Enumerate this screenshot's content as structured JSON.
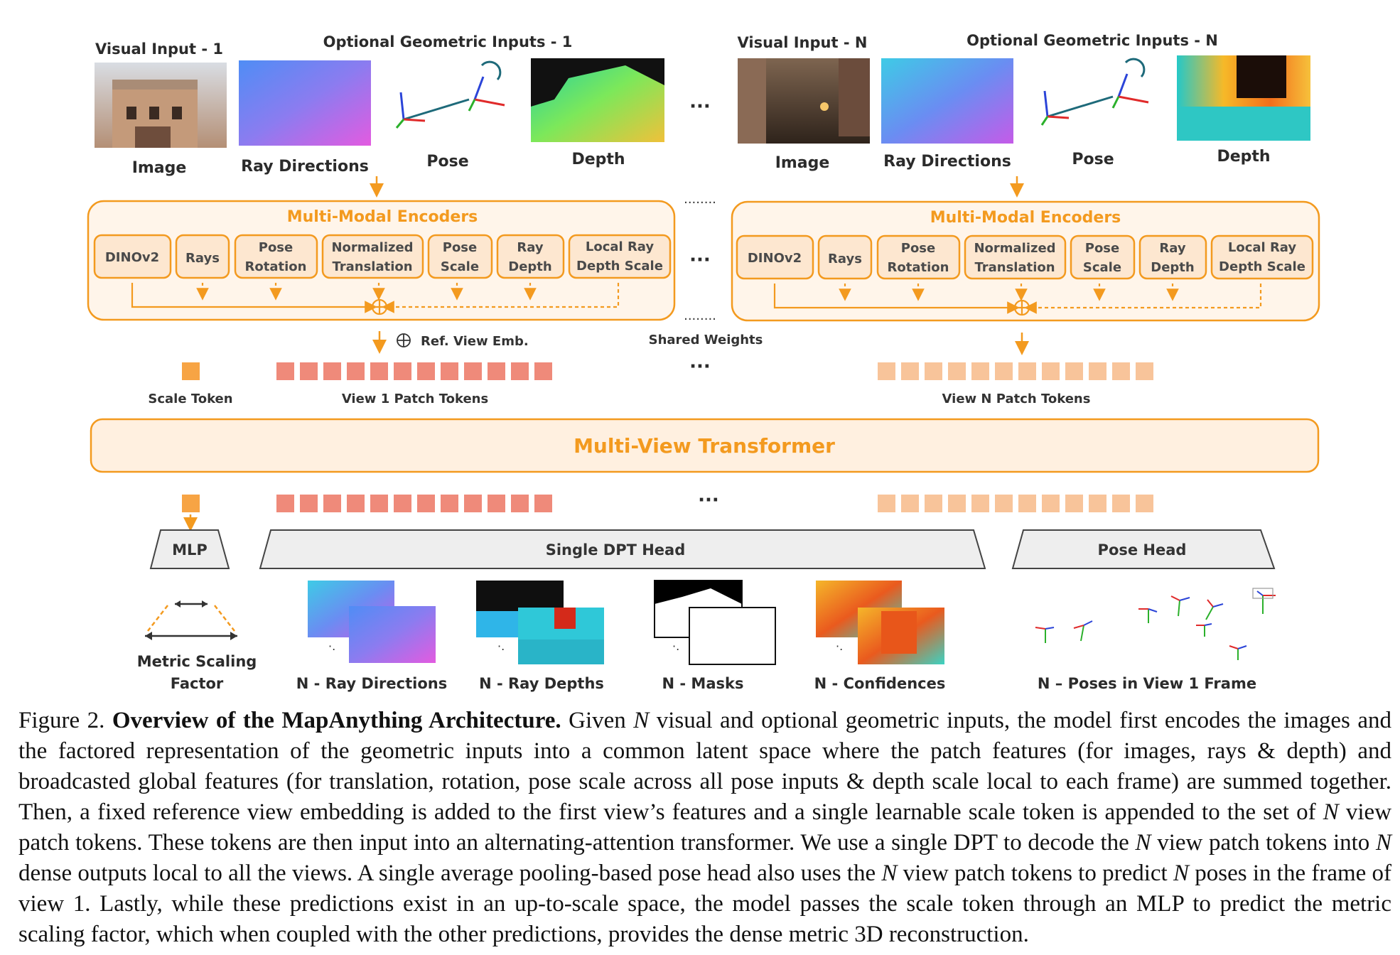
{
  "colors": {
    "orange": "#f39a1f",
    "encoder_fill": "#fde7d0",
    "encoder_border": "#f39a1f",
    "box_fill": "#fff5ea",
    "token_view1": "#ef8a7a",
    "token_viewN": "#f8c49a",
    "scale_token": "#f7a444",
    "head_fill": "#eeeeee"
  },
  "inputs": {
    "view1": {
      "visual_title": "Visual Input - 1",
      "geo_title": "Optional Geometric Inputs - 1",
      "image": "Image",
      "ray": "Ray Directions",
      "pose": "Pose",
      "depth": "Depth"
    },
    "viewN": {
      "visual_title": "Visual Input - N",
      "geo_title": "Optional Geometric Inputs - N",
      "image": "Image",
      "ray": "Ray Directions",
      "pose": "Pose",
      "depth": "Depth"
    },
    "ellipsis": "···"
  },
  "encoders": {
    "title": "Multi-Modal Encoders",
    "blocks": [
      {
        "line1": "DINOv2",
        "line2": ""
      },
      {
        "line1": "Rays",
        "line2": ""
      },
      {
        "line1": "Pose",
        "line2": "Rotation"
      },
      {
        "line1": "Normalized",
        "line2": "Translation"
      },
      {
        "line1": "Pose",
        "line2": "Scale"
      },
      {
        "line1": "Ray",
        "line2": "Depth"
      },
      {
        "line1": "Local Ray",
        "line2": "Depth Scale"
      }
    ],
    "shared_weights": "Shared Weights",
    "ref_view_emb": "Ref. View Emb.",
    "dots_line": "........"
  },
  "tokens": {
    "scale_token": "Scale Token",
    "view1": "View 1 Patch Tokens",
    "viewN": "View N Patch Tokens"
  },
  "transformer": "Multi-View Transformer",
  "heads": {
    "mlp": "MLP",
    "dpt": "Single DPT Head",
    "pose": "Pose Head"
  },
  "outputs": {
    "metric_line1": "Metric Scaling",
    "metric_line2": "Factor",
    "ray_dirs": "N - Ray Directions",
    "ray_depths": "N - Ray Depths",
    "masks": "N - Masks",
    "confidences": "N - Confidences",
    "poses": "N – Poses in View 1 Frame"
  },
  "caption": {
    "label": "Figure 2.",
    "bold": "Overview of the MapAnything Architecture.",
    "p1": "Given",
    "N": "N",
    "p2": "visual and optional geometric inputs, the model first encodes the images and the factored representation of the geometric inputs into a common latent space where the patch features (for images, rays & depth) and broadcasted global features (for translation, rotation, pose scale across all pose inputs & depth scale local to each frame) are summed together. Then, a fixed reference view embedding is added to the first view’s features and a single learnable scale token is appended to the set of",
    "p3": "view patch tokens. These tokens are then input into an alternating-attention transformer. We use a single DPT to decode the",
    "p4": "view patch tokens into",
    "p5": "dense outputs local to all the views. A single average pooling-based pose head also uses the",
    "p6": "view patch tokens to predict",
    "p7": "poses in the frame of view 1. Lastly, while these predictions exist in an up-to-scale space, the model passes the scale token through an MLP to predict the metric scaling factor, which when coupled with the other predictions, provides the dense metric 3D reconstruction."
  }
}
